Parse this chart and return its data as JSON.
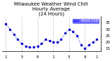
{
  "title": "Milwaukee Weather Wind Chill\nHourly Average\n(24 Hours)",
  "hours": [
    1,
    2,
    3,
    4,
    5,
    6,
    7,
    8,
    9,
    10,
    11,
    12,
    13,
    14,
    15,
    16,
    17,
    18,
    19,
    20,
    21,
    22,
    23,
    24
  ],
  "wind_chill": [
    34,
    30,
    26,
    22,
    19,
    17,
    16,
    16,
    17,
    19,
    22,
    21,
    20,
    20,
    22,
    27,
    30,
    28,
    25,
    18,
    15,
    18,
    20,
    22
  ],
  "line_color": "#0000cc",
  "marker": ".",
  "marker_size": 3,
  "bg_color": "#ffffff",
  "grid_color": "#aaaaaa",
  "yticks": [
    15,
    20,
    25,
    30,
    35
  ],
  "ylim": [
    13,
    40
  ],
  "xlim": [
    0,
    25
  ],
  "legend_label": "Wind Chill",
  "legend_color": "#4444ff",
  "title_fontsize": 5,
  "tick_fontsize": 4,
  "xtick_pos": [
    1,
    5,
    9,
    13,
    17,
    21,
    24
  ],
  "xtick_labels": [
    "1",
    "5",
    "9",
    "1",
    "5",
    "9",
    "1"
  ],
  "vgrid_positions": [
    1,
    5,
    9,
    13,
    17,
    21,
    25
  ]
}
